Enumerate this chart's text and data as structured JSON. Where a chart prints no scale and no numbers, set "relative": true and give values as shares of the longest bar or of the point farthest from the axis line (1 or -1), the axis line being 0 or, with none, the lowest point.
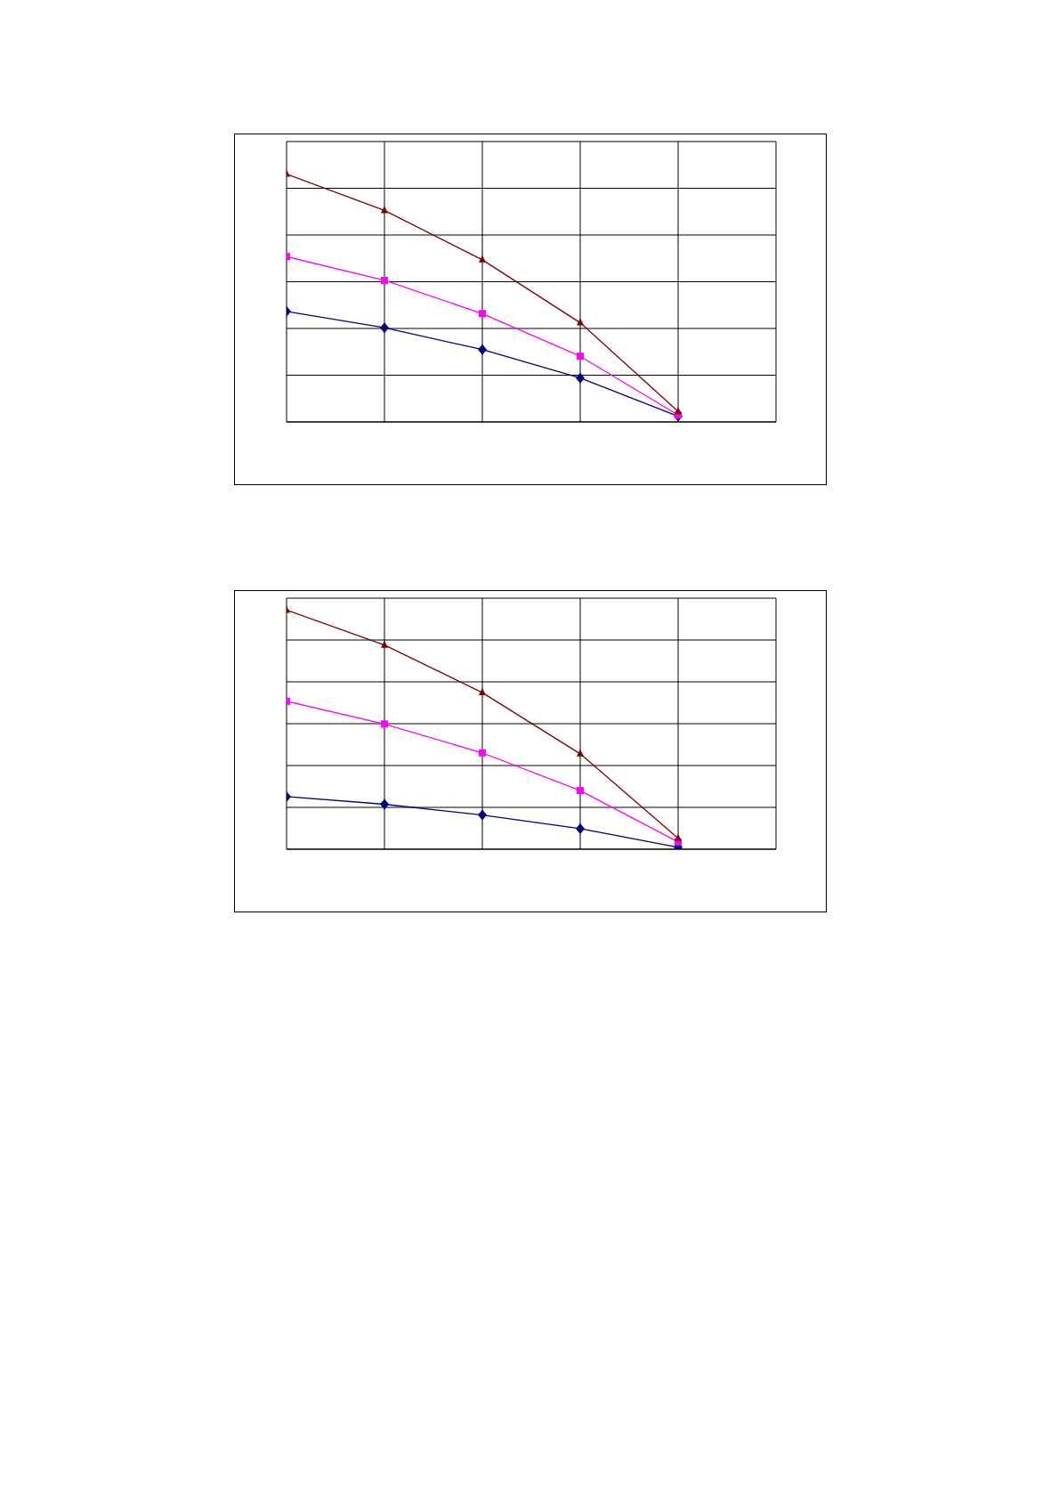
{
  "chart_data": [
    {
      "type": "line",
      "relative": true,
      "grid": true,
      "categories": [
        null,
        null,
        null,
        null,
        null,
        null
      ],
      "series": [
        {
          "color": "#000080",
          "marker": "diamond",
          "values": [
            0.446,
            0.38,
            0.292,
            0.177,
            0.023,
            null
          ]
        },
        {
          "color": "#ff00ff",
          "marker": "square",
          "values": [
            0.667,
            0.571,
            0.437,
            0.265,
            0.028,
            null
          ]
        },
        {
          "color": "#800000",
          "marker": "triangle",
          "values": [
            1,
            0.853,
            0.654,
            0.4,
            0.042,
            null
          ]
        }
      ]
    },
    {
      "type": "line",
      "relative": true,
      "grid": true,
      "categories": [
        null,
        null,
        null,
        null,
        null,
        null
      ],
      "series": [
        {
          "color": "#000080",
          "marker": "diamond",
          "values": [
            0.22,
            0.188,
            0.143,
            0.086,
            0.008,
            null
          ]
        },
        {
          "color": "#ff00ff",
          "marker": "square",
          "values": [
            0.619,
            0.524,
            0.403,
            0.245,
            0.03,
            null
          ]
        },
        {
          "color": "#800000",
          "marker": "triangle",
          "values": [
            1,
            0.854,
            0.655,
            0.399,
            0.046,
            null
          ]
        }
      ]
    }
  ]
}
